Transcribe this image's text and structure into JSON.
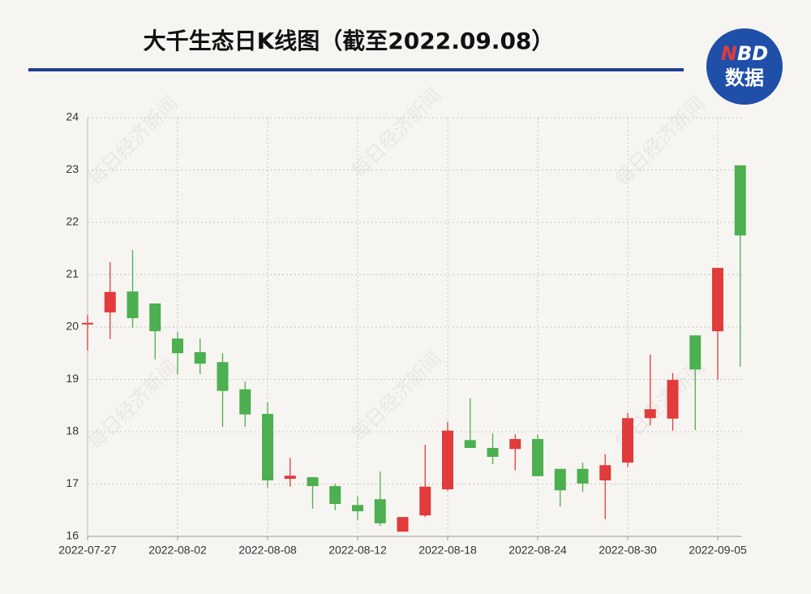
{
  "watermark": "每日经济新闻",
  "logo": {
    "first": "N",
    "rest": "BD",
    "line2": "数据"
  },
  "chart_data": {
    "type": "candlestick",
    "title": "大千生态日K线图（截至2022.09.08）",
    "categories": [
      "2022-07-27",
      null,
      null,
      null,
      "2022-08-02",
      null,
      null,
      null,
      "2022-08-08",
      null,
      null,
      null,
      "2022-08-12",
      null,
      null,
      null,
      "2022-08-18",
      null,
      null,
      null,
      "2022-08-24",
      null,
      null,
      null,
      "2022-08-30",
      null,
      null,
      null,
      "2022-09-05",
      null
    ],
    "open": [
      20.05,
      20.28,
      20.68,
      20.45,
      19.78,
      19.52,
      19.33,
      18.81,
      18.34,
      17.1,
      17.13,
      16.96,
      16.6,
      16.71,
      16.09,
      16.4,
      16.9,
      17.84,
      17.69,
      17.67,
      17.86,
      17.29,
      17.29,
      17.07,
      17.41,
      18.26,
      18.25,
      19.84,
      19.92,
      23.09
    ],
    "high": [
      20.23,
      21.24,
      21.47,
      20.45,
      19.91,
      19.78,
      19.5,
      18.96,
      18.56,
      17.5,
      17.13,
      17.01,
      16.76,
      17.24,
      16.37,
      17.75,
      18.19,
      18.64,
      17.97,
      17.95,
      17.95,
      17.29,
      17.41,
      17.57,
      18.36,
      19.47,
      19.12,
      19.84,
      21.13,
      23.09
    ],
    "low": [
      19.55,
      19.77,
      19.98,
      19.38,
      19.09,
      19.1,
      18.09,
      18.09,
      16.93,
      16.95,
      16.53,
      16.5,
      16.31,
      16.2,
      16.09,
      16.37,
      16.87,
      17.69,
      17.38,
      17.26,
      17.15,
      16.57,
      16.85,
      16.33,
      17.33,
      18.12,
      18.02,
      18.03,
      18.99,
      19.24
    ],
    "close": [
      20.08,
      20.67,
      20.17,
      19.92,
      19.5,
      19.3,
      18.78,
      18.33,
      17.07,
      17.16,
      16.96,
      16.62,
      16.48,
      16.25,
      16.37,
      16.95,
      18.02,
      17.69,
      17.52,
      17.86,
      17.15,
      16.88,
      17.01,
      17.36,
      18.26,
      18.43,
      18.99,
      19.19,
      21.13,
      21.75
    ],
    "up_color": "#e13b3b",
    "down_color": "#4caf50",
    "ylim": [
      16,
      24
    ],
    "yticks": [
      16,
      17,
      18,
      19,
      20,
      21,
      22,
      23,
      24
    ],
    "grid": true
  }
}
